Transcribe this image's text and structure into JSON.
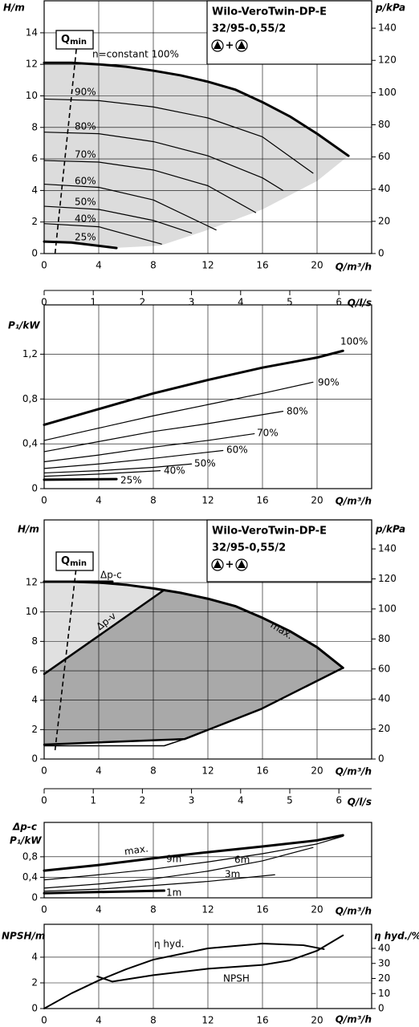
{
  "chart_data": [
    {
      "type": "line",
      "title": [
        "Wilo-VeroTwin-DP-E",
        "32/95-0,55/2"
      ],
      "pump_icons_separator": "+",
      "y_label": "H/m",
      "y2_label": "p/kPa",
      "x_label": "Q/m³/h",
      "xlim": [
        0,
        24
      ],
      "xticks": [
        0,
        4,
        8,
        12,
        16,
        20
      ],
      "ylim": [
        0,
        16.03
      ],
      "yticks": [
        0,
        2,
        4,
        6,
        8,
        10,
        12,
        14
      ],
      "y2lim": [
        0,
        157
      ],
      "y2ticks": [
        0,
        20,
        40,
        60,
        80,
        100,
        120,
        140
      ],
      "grid": true,
      "annotation": "n=constant 100%",
      "qmin": {
        "main": "Q",
        "sub": "min"
      },
      "qmin_line": {
        "x": [
          0.8,
          2.4
        ],
        "y": [
          0,
          13.3
        ]
      },
      "areas": [
        {
          "color": "#dcdcdc",
          "x": [
            0,
            2,
            4,
            6,
            8,
            10,
            12,
            14,
            16,
            18,
            20,
            22.3,
            20,
            16,
            12,
            8.5,
            5,
            0
          ],
          "y": [
            12.1,
            12.1,
            12.0,
            11.85,
            11.6,
            11.3,
            10.9,
            10.4,
            9.6,
            8.7,
            7.6,
            6.2,
            4.6,
            2.8,
            1.5,
            0.5,
            0.35,
            0.75
          ]
        }
      ],
      "series": [
        {
          "color": "#000",
          "line_width": 3,
          "x": [
            0,
            2,
            4,
            6,
            8,
            10,
            12,
            14,
            16,
            18,
            20,
            22.3
          ],
          "y": [
            12.1,
            12.1,
            12.0,
            11.85,
            11.6,
            11.3,
            10.9,
            10.4,
            9.6,
            8.7,
            7.6,
            6.2
          ]
        },
        {
          "name": "90%",
          "color": "#000",
          "line_width": 1.2,
          "x": [
            0,
            4,
            8,
            12,
            16,
            19.7
          ],
          "y": [
            9.8,
            9.7,
            9.3,
            8.6,
            7.4,
            5.1
          ]
        },
        {
          "name": "80%",
          "color": "#000",
          "line_width": 1.2,
          "x": [
            0,
            4,
            8,
            12,
            16,
            17.5
          ],
          "y": [
            7.7,
            7.6,
            7.1,
            6.2,
            4.8,
            4.0
          ]
        },
        {
          "name": "70%",
          "color": "#000",
          "line_width": 1.2,
          "x": [
            0,
            4,
            8,
            12,
            15.5
          ],
          "y": [
            5.9,
            5.8,
            5.3,
            4.3,
            2.6
          ]
        },
        {
          "name": "60%",
          "color": "#000",
          "line_width": 1.2,
          "x": [
            0,
            4,
            8,
            12.6
          ],
          "y": [
            4.4,
            4.2,
            3.4,
            1.5
          ]
        },
        {
          "name": "50%",
          "color": "#000",
          "line_width": 1.2,
          "x": [
            0,
            4,
            8,
            10.8
          ],
          "y": [
            3.0,
            2.8,
            2.1,
            1.3
          ]
        },
        {
          "name": "40%",
          "color": "#000",
          "line_width": 1.2,
          "x": [
            0,
            4,
            8.6
          ],
          "y": [
            1.9,
            1.7,
            0.6
          ]
        },
        {
          "name": "25%",
          "color": "#000",
          "line_width": 3,
          "x": [
            0,
            2,
            5.3
          ],
          "y": [
            0.76,
            0.7,
            0.35
          ]
        }
      ]
    },
    {
      "type": "axis",
      "x_label": "Q/l/s",
      "xlim": [
        0,
        6.667
      ],
      "xticks": [
        0,
        1,
        2,
        3,
        4,
        5,
        6
      ]
    },
    {
      "type": "line",
      "y_label": "P₁/kW",
      "x_label": "Q/m³/h",
      "xlim": [
        0,
        24
      ],
      "xticks": [
        0,
        4,
        8,
        12,
        16,
        20
      ],
      "ylim": [
        0,
        1.64
      ],
      "yticks": [
        0,
        {
          "value": 0.4,
          "label": "0,4"
        },
        {
          "value": 0.8,
          "label": "0,8"
        },
        {
          "value": 1.2,
          "label": "1,2"
        }
      ],
      "grid": true,
      "series": [
        {
          "name": "100%",
          "color": "#000",
          "line_width": 3,
          "x": [
            0,
            4,
            8,
            12,
            16,
            20,
            21.9
          ],
          "y": [
            0.57,
            0.71,
            0.85,
            0.97,
            1.08,
            1.17,
            1.23
          ]
        },
        {
          "name": "90%",
          "color": "#000",
          "line_width": 1.2,
          "x": [
            0,
            4,
            8,
            12,
            16,
            19.7
          ],
          "y": [
            0.43,
            0.54,
            0.65,
            0.75,
            0.85,
            0.95
          ]
        },
        {
          "name": "80%",
          "color": "#000",
          "line_width": 1.2,
          "x": [
            0,
            4,
            8,
            12,
            17.5
          ],
          "y": [
            0.33,
            0.42,
            0.51,
            0.58,
            0.69
          ]
        },
        {
          "name": "70%",
          "color": "#000",
          "line_width": 1.2,
          "x": [
            0,
            4,
            8,
            12,
            15.4
          ],
          "y": [
            0.24,
            0.3,
            0.37,
            0.43,
            0.49
          ]
        },
        {
          "name": "60%",
          "color": "#000",
          "line_width": 1.2,
          "x": [
            0,
            4,
            8,
            13.1
          ],
          "y": [
            0.18,
            0.22,
            0.27,
            0.34
          ]
        },
        {
          "name": "50%",
          "color": "#000",
          "line_width": 1.2,
          "x": [
            0,
            4,
            8,
            10.8
          ],
          "y": [
            0.14,
            0.16,
            0.19,
            0.22
          ]
        },
        {
          "name": "40%",
          "color": "#000",
          "line_width": 1.2,
          "x": [
            0,
            4,
            8.5
          ],
          "y": [
            0.11,
            0.13,
            0.16
          ]
        },
        {
          "name": "25%",
          "color": "#000",
          "line_width": 3,
          "x": [
            0,
            5.3
          ],
          "y": [
            0.08,
            0.085
          ]
        }
      ]
    },
    {
      "type": "line",
      "title": [
        "Wilo-VeroTwin-DP-E",
        "32/95-0,55/2"
      ],
      "pump_icons_separator": "+",
      "y_label": "H/m",
      "y2_label": "p/kPa",
      "x_label": "Q/m³/h",
      "xlim": [
        0,
        24
      ],
      "xticks": [
        0,
        4,
        8,
        12,
        16,
        20
      ],
      "ylim": [
        0,
        16.26
      ],
      "yticks": [
        0,
        2,
        4,
        6,
        8,
        10,
        12
      ],
      "y2lim": [
        0,
        159.3
      ],
      "y2ticks": [
        0,
        20,
        40,
        60,
        80,
        100,
        120,
        140
      ],
      "grid": true,
      "qmin": {
        "main": "Q",
        "sub": "min"
      },
      "qmin_line": {
        "x": [
          0.8,
          2.4
        ],
        "y": [
          0.6,
          13.4
        ]
      },
      "areas": [
        {
          "color": "#e0e0e0",
          "x": [
            0,
            4,
            8.8,
            0
          ],
          "y": [
            12.06,
            12.0,
            11.5,
            5.78
          ]
        },
        {
          "color": "#a9a9a9",
          "x": [
            0,
            8.8,
            10,
            12,
            14,
            16,
            18,
            20,
            21.9,
            15.9,
            10.3,
            0
          ],
          "y": [
            5.78,
            11.5,
            11.3,
            10.9,
            10.4,
            9.6,
            8.7,
            7.6,
            6.2,
            3.4,
            1.36,
            0.98
          ]
        }
      ],
      "series": [
        {
          "name": "max.",
          "color": "#000",
          "line_width": 3,
          "x": [
            0,
            2,
            4,
            6,
            8,
            10,
            12,
            14,
            16,
            18,
            20,
            21.9
          ],
          "y": [
            12.06,
            12.06,
            12.0,
            11.85,
            11.6,
            11.3,
            10.9,
            10.4,
            9.6,
            8.7,
            7.6,
            6.2
          ]
        },
        {
          "name": "Δp-c",
          "color": "#000",
          "line_width": 3,
          "x": [
            0,
            5
          ],
          "y": [
            12.06,
            12.06
          ]
        },
        {
          "name": "Δp-v",
          "color": "#000",
          "line_width": 2.5,
          "x": [
            0,
            8.8
          ],
          "y": [
            5.78,
            11.5
          ]
        },
        {
          "color": "#000",
          "line_width": 2.5,
          "x": [
            0,
            10.3,
            15.9,
            21.9
          ],
          "y": [
            0.98,
            1.36,
            3.4,
            6.2
          ]
        },
        {
          "color": "#000",
          "line_width": 1.5,
          "x": [
            0,
            8.8,
            10.3
          ],
          "y": [
            0.9,
            0.9,
            1.36
          ]
        }
      ]
    },
    {
      "type": "axis",
      "x_label": "Q/l/s",
      "xlim": [
        0,
        6.667
      ],
      "xticks": [
        0,
        1,
        2,
        3,
        4,
        5,
        6
      ]
    },
    {
      "type": "line",
      "y_label": [
        "Δp-c",
        "P₁/kW"
      ],
      "x_label": "Q/m³/h",
      "xlim": [
        0,
        24
      ],
      "xticks": [
        0,
        4,
        8,
        12,
        16,
        20
      ],
      "ylim": [
        0,
        1.47
      ],
      "yticks": [
        0,
        {
          "value": 0.4,
          "label": "0,4"
        },
        {
          "value": 0.8,
          "label": "0,8"
        }
      ],
      "grid": true,
      "series": [
        {
          "name": "max.",
          "color": "#000",
          "line_width": 3,
          "x": [
            0,
            4,
            8,
            12,
            16,
            20,
            21.9
          ],
          "y": [
            0.53,
            0.64,
            0.77,
            0.89,
            1.0,
            1.12,
            1.22
          ]
        },
        {
          "name": "9m",
          "color": "#000",
          "line_width": 1.2,
          "x": [
            0,
            4,
            8,
            12,
            16,
            20,
            21.9
          ],
          "y": [
            0.35,
            0.45,
            0.56,
            0.7,
            0.86,
            1.05,
            1.2
          ]
        },
        {
          "name": "6m",
          "color": "#000",
          "line_width": 1.2,
          "x": [
            0,
            4,
            8,
            12,
            16,
            19.7
          ],
          "y": [
            0.19,
            0.27,
            0.37,
            0.52,
            0.72,
            0.98
          ]
        },
        {
          "name": "3m",
          "color": "#000",
          "line_width": 1.2,
          "x": [
            0,
            4,
            8,
            12,
            16.9
          ],
          "y": [
            0.13,
            0.17,
            0.24,
            0.32,
            0.45
          ]
        },
        {
          "name": "1m",
          "color": "#000",
          "line_width": 3,
          "x": [
            0,
            8.8
          ],
          "y": [
            0.09,
            0.14
          ]
        }
      ]
    },
    {
      "type": "line",
      "y_label": "NPSH/m",
      "y2_label": "η hyd./%",
      "x_label": "Q/m³/h",
      "xlim": [
        0,
        24
      ],
      "xticks": [
        0,
        4,
        8,
        12,
        16,
        20
      ],
      "ylim": [
        0,
        6.56
      ],
      "yticks": [
        0,
        2,
        4
      ],
      "y2lim": [
        0,
        56
      ],
      "y2ticks": [
        0,
        10,
        20,
        30,
        40
      ],
      "grid": true,
      "series": [
        {
          "name": "η hyd.",
          "axis": "y2",
          "color": "#000",
          "line_width": 2,
          "x": [
            0,
            2,
            4,
            6,
            8,
            12,
            16,
            19,
            20.5
          ],
          "y": [
            0,
            10.1,
            18.7,
            26.1,
            32.5,
            40,
            43.2,
            42.1,
            39.5
          ]
        },
        {
          "name": "NPSH",
          "color": "#000",
          "line_width": 2,
          "x": [
            3.9,
            5,
            8,
            12,
            16,
            18,
            20,
            21.9
          ],
          "y": [
            2.5,
            2.1,
            2.6,
            3.1,
            3.4,
            3.75,
            4.5,
            5.7
          ]
        }
      ]
    }
  ]
}
